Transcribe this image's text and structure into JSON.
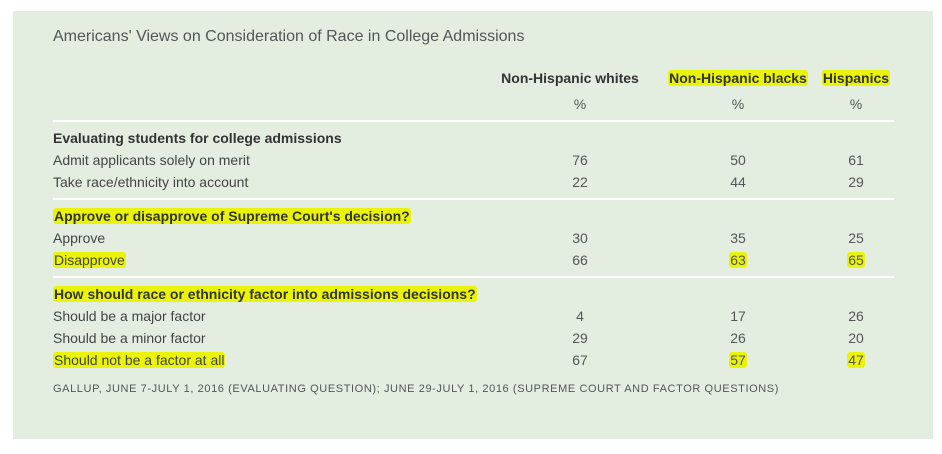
{
  "chart_data": {
    "type": "table",
    "title": "Americans' Views on Consideration of Race in College Admissions",
    "columns": [
      "Non-Hispanic whites",
      "Non-Hispanic blacks",
      "Hispanics"
    ],
    "units": [
      "%",
      "%",
      "%"
    ],
    "sections": [
      {
        "heading": "Evaluating students for college admissions",
        "rows": [
          {
            "label": "Admit applicants solely on merit",
            "values": [
              "76",
              "50",
              "61"
            ]
          },
          {
            "label": "Take race/ethnicity into account",
            "values": [
              "22",
              "44",
              "29"
            ]
          }
        ]
      },
      {
        "heading": "Approve or disapprove of Supreme Court's decision?",
        "rows": [
          {
            "label": "Approve",
            "values": [
              "30",
              "35",
              "25"
            ]
          },
          {
            "label": "Disapprove",
            "values": [
              "66",
              "63",
              "65"
            ]
          }
        ]
      },
      {
        "heading": "How should race or ethnicity factor into admissions decisions?",
        "rows": [
          {
            "label": "Should be a major factor",
            "values": [
              "4",
              "17",
              "26"
            ]
          },
          {
            "label": "Should be a minor factor",
            "values": [
              "29",
              "26",
              "20"
            ]
          },
          {
            "label": "Should not be a factor at all",
            "values": [
              "67",
              "57",
              "47"
            ]
          }
        ]
      }
    ],
    "source": "GALLUP, JUNE 7-JULY 1, 2016 (EVALUATING QUESTION); JUNE 29-JULY 1, 2016 (SUPREME COURT AND FACTOR QUESTIONS)",
    "highlight_color": "#eaf30a"
  }
}
